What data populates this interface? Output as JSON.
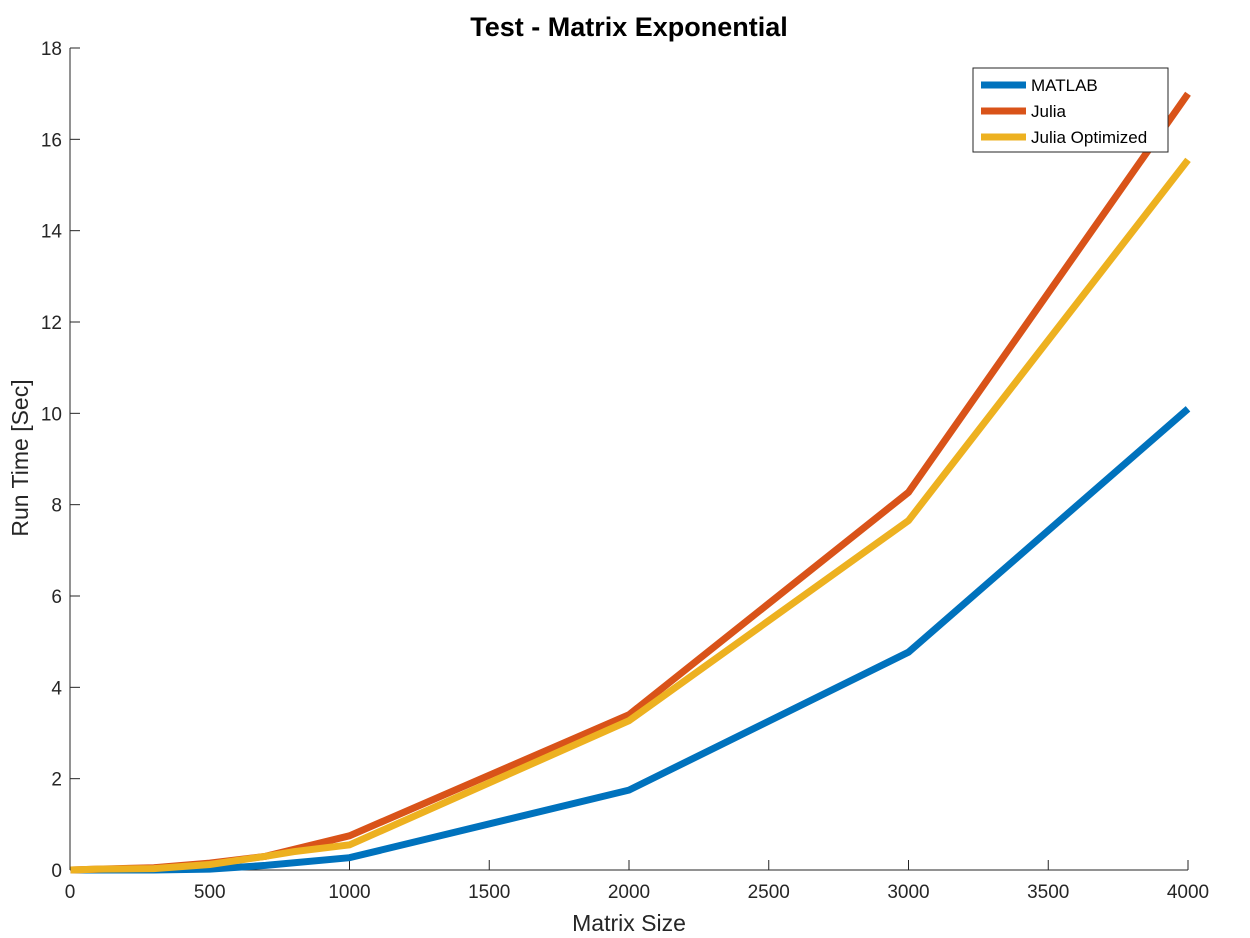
{
  "chart_data": {
    "type": "line",
    "title": "Test - Matrix Exponential",
    "xlabel": "Matrix Size",
    "ylabel": "Run Time  [Sec]",
    "xlim": [
      0,
      4000
    ],
    "ylim": [
      0,
      18
    ],
    "xticks": [
      0,
      500,
      1000,
      1500,
      2000,
      2500,
      3000,
      3500,
      4000
    ],
    "yticks": [
      0,
      2,
      4,
      6,
      8,
      10,
      12,
      14,
      16,
      18
    ],
    "grid": false,
    "legend_position": "top-right",
    "series": [
      {
        "name": "MATLAB",
        "color": "#0072BD",
        "x": [
          2,
          100,
          300,
          500,
          700,
          1000,
          2000,
          3000,
          4000
        ],
        "y": [
          0.0,
          0.0,
          0.0,
          0.02,
          0.1,
          0.27,
          1.75,
          4.77,
          10.1
        ]
      },
      {
        "name": "Julia",
        "color": "#D95319",
        "x": [
          2,
          100,
          300,
          500,
          700,
          1000,
          2000,
          3000,
          4000
        ],
        "y": [
          0.0,
          0.02,
          0.05,
          0.15,
          0.3,
          0.75,
          3.4,
          8.27,
          17.0
        ]
      },
      {
        "name": "Julia Optimized",
        "color": "#EDB120",
        "x": [
          2,
          100,
          300,
          500,
          700,
          800,
          1000,
          2000,
          3000,
          4000
        ],
        "y": [
          0.0,
          0.02,
          0.03,
          0.12,
          0.3,
          0.4,
          0.55,
          3.27,
          7.65,
          15.55
        ]
      }
    ]
  }
}
